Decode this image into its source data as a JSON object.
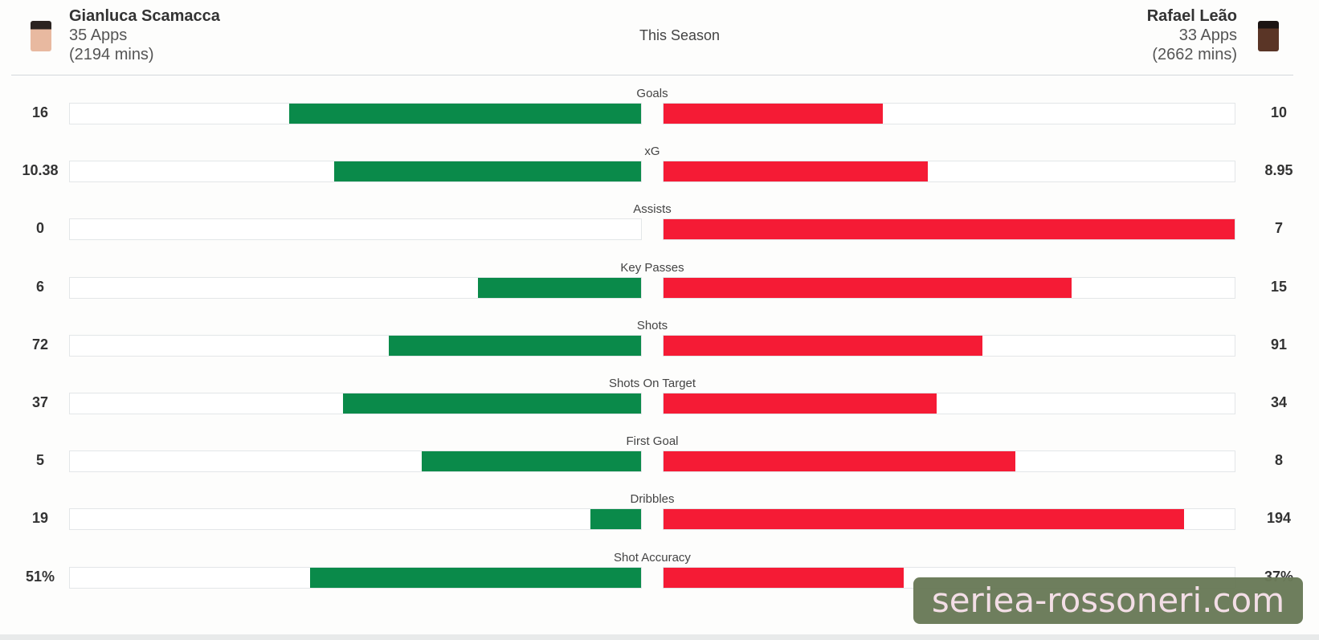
{
  "header": {
    "season_label": "This Season",
    "left_player": {
      "name": "Gianluca Scamacca",
      "apps": "35 Apps",
      "mins": "(2194 mins)"
    },
    "right_player": {
      "name": "Rafael Leão",
      "apps": "33 Apps",
      "mins": "(2662 mins)"
    }
  },
  "watermark": "seriea-rossoneri.com",
  "colors": {
    "left": "#0a8a4a",
    "right": "#f51b35"
  },
  "chart_data": {
    "type": "bar",
    "orientation": "diverging-horizontal",
    "title": "This Season",
    "categories": [
      "Goals",
      "xG",
      "Assists",
      "Key Passes",
      "Shots",
      "Shots On Target",
      "First Goal",
      "Dribbles",
      "Shot Accuracy"
    ],
    "series": [
      {
        "name": "Gianluca Scamacca",
        "values": [
          16,
          10.38,
          0,
          6,
          72,
          37,
          5,
          19,
          51
        ],
        "labels": [
          "16",
          "10.38",
          "0",
          "6",
          "72",
          "37",
          "5",
          "19",
          "51%"
        ]
      },
      {
        "name": "Rafael Leão",
        "values": [
          10,
          8.95,
          7,
          15,
          91,
          34,
          8,
          194,
          37
        ],
        "labels": [
          "10",
          "8.95",
          "7",
          "15",
          "91",
          "34",
          "8",
          "194",
          "37%"
        ]
      }
    ]
  }
}
